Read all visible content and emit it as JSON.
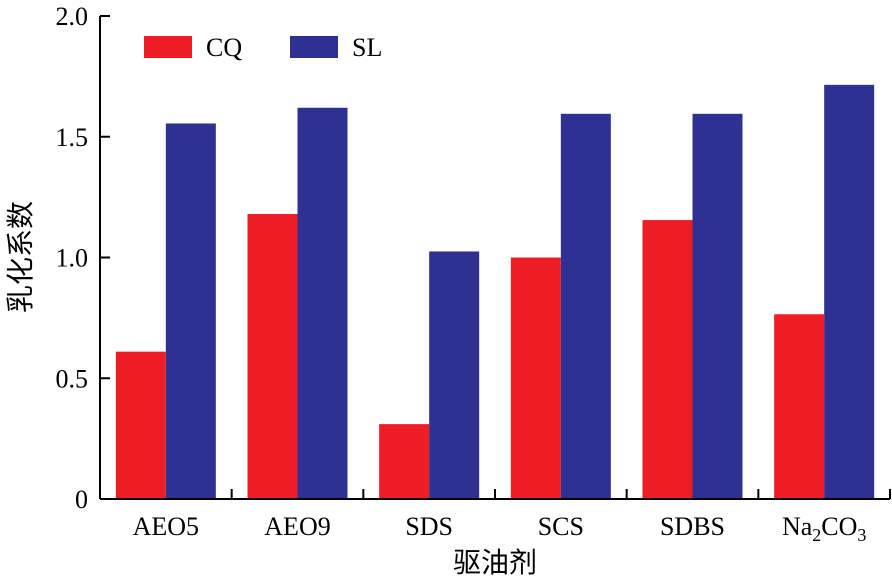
{
  "chart_data": {
    "type": "bar",
    "title": "",
    "xlabel": "驱油剂",
    "ylabel": "乳化系数",
    "categories": [
      "AEO5",
      "AEO9",
      "SDS",
      "SCS",
      "SDBS",
      "Na2CO3"
    ],
    "series": [
      {
        "name": "CQ",
        "color": "#ee1c25",
        "values": [
          0.61,
          1.18,
          0.31,
          1.0,
          1.155,
          0.765
        ]
      },
      {
        "name": "SL",
        "color": "#2e3192",
        "values": [
          1.555,
          1.62,
          1.025,
          1.595,
          1.595,
          1.715
        ]
      }
    ],
    "ylim": [
      0,
      2.0
    ],
    "yticks": [
      "0",
      "0.5",
      "1.0",
      "1.5",
      "2.0"
    ],
    "ytick_values": [
      0,
      0.5,
      1.0,
      1.5,
      2.0
    ],
    "grid": false,
    "legend_position": "top-left"
  }
}
